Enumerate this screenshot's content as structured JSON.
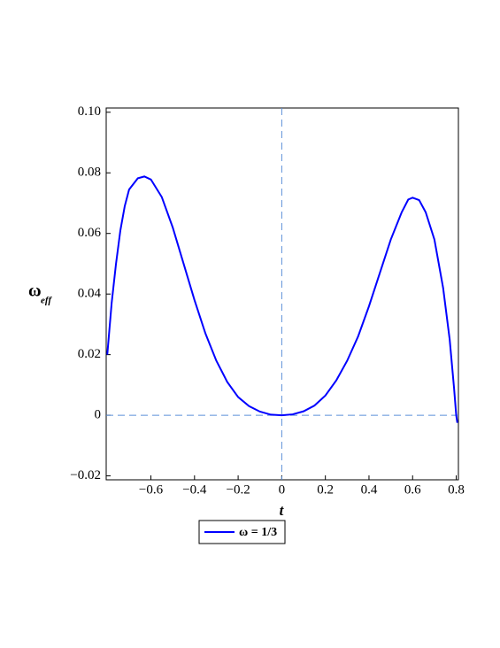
{
  "chart_data": {
    "type": "line",
    "x_label": "t",
    "y_label": "ω",
    "y_label_subscript": "eff",
    "x": [
      -0.8,
      -0.78,
      -0.76,
      -0.74,
      -0.72,
      -0.7,
      -0.66,
      -0.63,
      -0.6,
      -0.55,
      -0.5,
      -0.45,
      -0.4,
      -0.35,
      -0.3,
      -0.25,
      -0.2,
      -0.15,
      -0.1,
      -0.05,
      0,
      0.05,
      0.1,
      0.15,
      0.2,
      0.25,
      0.3,
      0.35,
      0.4,
      0.45,
      0.5,
      0.55,
      0.58,
      0.6,
      0.63,
      0.66,
      0.7,
      0.74,
      0.77,
      0.79,
      0.8,
      0.805
    ],
    "series": [
      {
        "name": "ω = 1/3",
        "color": "#0000ff",
        "values": [
          0.02,
          0.037,
          0.05,
          0.061,
          0.069,
          0.0745,
          0.0782,
          0.0788,
          0.0778,
          0.072,
          0.062,
          0.05,
          0.038,
          0.027,
          0.018,
          0.011,
          0.006,
          0.003,
          0.0012,
          0.0002,
          0,
          0.0003,
          0.0013,
          0.0032,
          0.0065,
          0.0115,
          0.018,
          0.026,
          0.036,
          0.047,
          0.058,
          0.067,
          0.0712,
          0.0718,
          0.071,
          0.067,
          0.058,
          0.042,
          0.025,
          0.009,
          0.0,
          -0.0025
        ]
      }
    ],
    "xlim": [
      -0.805,
      0.81
    ],
    "ylim": [
      -0.0213,
      0.1014
    ],
    "xticks": [
      {
        "value": -0.6,
        "label": "−0.6"
      },
      {
        "value": -0.4,
        "label": "−0.4"
      },
      {
        "value": -0.2,
        "label": "−0.2"
      },
      0,
      0.2,
      0.4,
      0.6,
      0.8
    ],
    "yticks": [
      {
        "value": -0.02,
        "label": "−0.02"
      },
      0,
      0.02,
      0.04,
      0.06,
      0.08,
      {
        "value": 0.1,
        "label": "0.10"
      }
    ],
    "zero_lines": true,
    "zero_line_color": "#5b8fd9"
  }
}
